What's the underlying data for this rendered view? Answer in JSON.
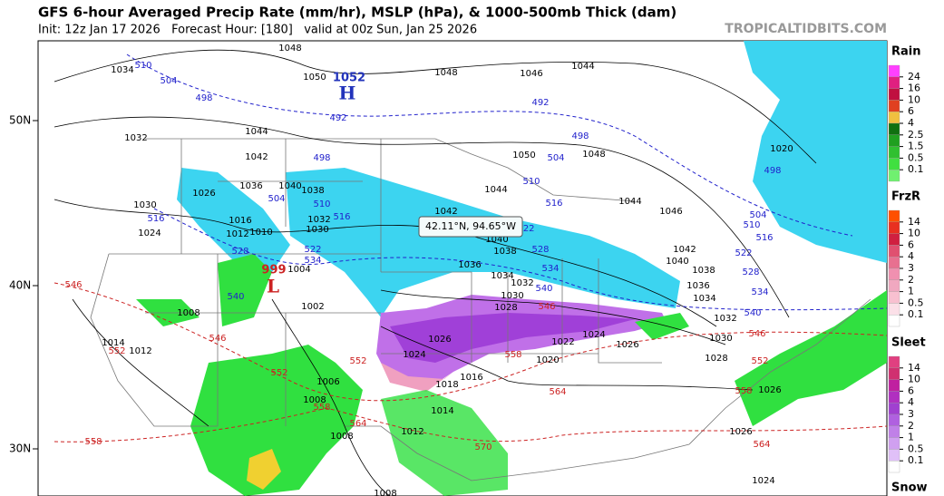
{
  "header": {
    "title": "GFS 6-hour Averaged Precip Rate (mm/hr), MSLP (hPa), & 1000-500mb Thick (dam)",
    "subtitle": "Init: 12z Jan 17 2026   Forecast Hour: [180]   valid at 00z Sun, Jan 25 2026",
    "watermark": "TROPICALTIDBITS.COM"
  },
  "map": {
    "lat_labels": [
      "50N",
      "40N",
      "30N"
    ],
    "high": {
      "value": "1052",
      "label": "H"
    },
    "low": {
      "value": "999",
      "label": "L"
    },
    "tooltip": "42.11°N, 94.65°W",
    "isobar_labels": [
      "1048",
      "1034",
      "1050",
      "1048",
      "1046",
      "1044",
      "1032",
      "1044",
      "1042",
      "1036",
      "1040",
      "1038",
      "1030",
      "1026",
      "1024",
      "1032",
      "1030",
      "1016",
      "1012",
      "1010",
      "1004",
      "1002",
      "1008",
      "1014",
      "1012",
      "1006",
      "1008",
      "1008",
      "1012",
      "1014",
      "1016",
      "1018",
      "1024",
      "1026",
      "1028",
      "1030",
      "1032",
      "1034",
      "1036",
      "1038",
      "1040",
      "1042",
      "1044",
      "1050",
      "1048",
      "1044",
      "1046",
      "1042",
      "1040",
      "1038",
      "1036",
      "1034",
      "1032",
      "1030",
      "1028",
      "1026",
      "1024",
      "1022",
      "1020",
      "1020",
      "1026",
      "1026",
      "1024",
      "1008"
    ],
    "thickness_blue": [
      "510",
      "504",
      "498",
      "492",
      "492",
      "498",
      "504",
      "510",
      "516",
      "498",
      "504",
      "510",
      "516",
      "516",
      "522",
      "528",
      "534",
      "540",
      "528",
      "534",
      "540",
      "498",
      "504",
      "510",
      "516",
      "522",
      "528",
      "534",
      "540",
      "522"
    ],
    "thickness_red": [
      "546",
      "552",
      "546",
      "552",
      "558",
      "558",
      "564",
      "570",
      "564",
      "558",
      "546",
      "546",
      "552",
      "558",
      "564",
      "552"
    ]
  },
  "legend": [
    {
      "title": "Rain",
      "ticks": [
        "24",
        "16",
        "10",
        "6",
        "4",
        "2.5",
        "1.5",
        "0.5",
        "0.1"
      ]
    },
    {
      "title": "FrzR",
      "ticks": [
        "14",
        "10",
        "6",
        "4",
        "3",
        "2",
        "1",
        "0.5",
        "0.1"
      ]
    },
    {
      "title": "Sleet",
      "ticks": [
        "14",
        "10",
        "6",
        "4",
        "3",
        "2",
        "1",
        "0.5",
        "0.1"
      ]
    },
    {
      "title": "Snow",
      "ticks": []
    }
  ]
}
